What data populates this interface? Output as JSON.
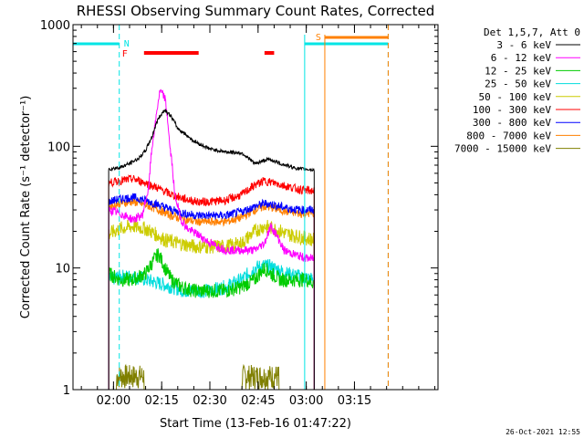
{
  "chart_data": {
    "type": "line",
    "title": "RHESSI Observing Summary Count Rates, Corrected",
    "xlabel": "Start Time (13-Feb-16 01:47:22)",
    "ylabel": "Corrected Count Rate (s⁻¹ detector⁻¹)",
    "yscale": "log",
    "ylim": [
      1,
      1000
    ],
    "xlim_minutes": [
      107.4,
      221.0
    ],
    "x_ticks": [
      {
        "label": "02:00",
        "minutes": 120
      },
      {
        "label": "02:15",
        "minutes": 135
      },
      {
        "label": "02:30",
        "minutes": 150
      },
      {
        "label": "02:45",
        "minutes": 165
      },
      {
        "label": "03:00",
        "minutes": 180
      },
      {
        "label": "03:15",
        "minutes": 195
      }
    ],
    "y_ticks": [
      {
        "label": "1",
        "value": 1
      },
      {
        "label": "10",
        "value": 10
      },
      {
        "label": "100",
        "value": 100
      },
      {
        "label": "1000",
        "value": 1000
      }
    ],
    "legend_title": "Det 1,5,7, Att 0",
    "legend_position": "right",
    "timestamp": "26-Oct-2021 12:55",
    "flags": {
      "night_label": "N",
      "flare_label": "F",
      "saa_label": "S",
      "flare_intervals_minutes": [
        [
          129.5,
          146.5
        ],
        [
          167.0,
          170.0
        ]
      ],
      "saa_interval_minutes": [
        183.5,
        205.5
      ],
      "night_intervals_minutes": [
        [
          107.4,
          121.8
        ],
        [
          179.5,
          205.5
        ]
      ]
    },
    "series": [
      {
        "name": "3 - 6 keV",
        "color": "#000000",
        "x": [
          118.5,
          122,
          125,
          128,
          130,
          132,
          134,
          136,
          138,
          140,
          145,
          150,
          155,
          160,
          164,
          166,
          168,
          170,
          172,
          175,
          178,
          180,
          182.5
        ],
        "y": [
          65,
          67,
          72,
          80,
          92,
          120,
          170,
          200,
          175,
          140,
          110,
          95,
          90,
          88,
          72,
          75,
          78,
          76,
          72,
          68,
          65,
          65,
          64
        ]
      },
      {
        "name": "6 - 12 keV",
        "color": "#ff00ff",
        "x": [
          118.5,
          122,
          126,
          129,
          131,
          133,
          134.5,
          136,
          137.5,
          139,
          141,
          143,
          146,
          150,
          155,
          160,
          164,
          167,
          169,
          171,
          173,
          176,
          180,
          182.5
        ],
        "y": [
          30,
          28,
          25,
          27,
          45,
          150,
          285,
          250,
          100,
          40,
          25,
          21,
          19,
          16,
          14,
          14,
          14,
          16,
          22,
          18,
          14,
          13,
          12,
          12
        ]
      },
      {
        "name": "12 - 25 keV",
        "color": "#00cc00",
        "x": [
          118.5,
          122,
          126,
          130,
          132,
          134,
          136,
          138,
          141,
          145,
          150,
          155,
          160,
          164,
          167,
          169,
          172,
          176,
          180,
          182.5
        ],
        "y": [
          9,
          8,
          8,
          9,
          11,
          13,
          10,
          8,
          7,
          6.5,
          6.5,
          6.5,
          7,
          8,
          10,
          9,
          8,
          8,
          8,
          7.5
        ]
      },
      {
        "name": "25 - 50 keV",
        "color": "#00dddd",
        "x": [
          118.5,
          122,
          126,
          130,
          134,
          138,
          142,
          146,
          150,
          155,
          160,
          164,
          167,
          170,
          174,
          178,
          182.5
        ],
        "y": [
          8,
          8.5,
          8.5,
          8,
          7.5,
          7,
          6.5,
          6.5,
          6.5,
          7,
          8,
          10,
          10.5,
          10,
          9,
          8.5,
          8
        ]
      },
      {
        "name": "50 - 100 keV",
        "color": "#cccc00",
        "x": [
          118.5,
          122,
          126,
          130,
          133,
          136,
          140,
          145,
          150,
          155,
          160,
          164,
          167,
          170,
          174,
          178,
          182.5
        ],
        "y": [
          19,
          21,
          22,
          21,
          19,
          17,
          16,
          15,
          15,
          15,
          16,
          20,
          22,
          21,
          19,
          18,
          17
        ]
      },
      {
        "name": "100 - 300 keV",
        "color": "#ff0000",
        "x": [
          118.5,
          122,
          126,
          130,
          134,
          138,
          142,
          146,
          150,
          155,
          160,
          164,
          167,
          170,
          174,
          178,
          182.5
        ],
        "y": [
          50,
          52,
          54,
          50,
          45,
          40,
          37,
          35,
          35,
          36,
          40,
          48,
          52,
          50,
          47,
          44,
          43
        ]
      },
      {
        "name": "300 - 800 keV",
        "color": "#0000ff",
        "x": [
          118.5,
          122,
          126,
          130,
          134,
          138,
          142,
          146,
          150,
          155,
          160,
          164,
          167,
          170,
          174,
          178,
          182.5
        ],
        "y": [
          35,
          37,
          38,
          36,
          33,
          30,
          28,
          27,
          27,
          27,
          29,
          32,
          34,
          33,
          31,
          30,
          30
        ]
      },
      {
        "name": "800 - 7000 keV",
        "color": "#ff8000",
        "x": [
          118.5,
          122,
          126,
          130,
          134,
          138,
          142,
          146,
          150,
          155,
          160,
          164,
          167,
          170,
          174,
          178,
          182.5
        ],
        "y": [
          32,
          34,
          35,
          33,
          30,
          27,
          25,
          24,
          24,
          24,
          26,
          30,
          32,
          31,
          29,
          28,
          28
        ]
      },
      {
        "name": "7000 - 15000 keV",
        "color": "#808000",
        "x": [
          118.5,
          121,
          121.5,
          129,
          129.5,
          160,
          160.5,
          171,
          171.5,
          182.5
        ],
        "y": [
          1.0,
          1.0,
          1.6,
          1.6,
          1.0,
          1.0,
          1.6,
          1.6,
          1.0,
          1.0
        ]
      }
    ]
  }
}
